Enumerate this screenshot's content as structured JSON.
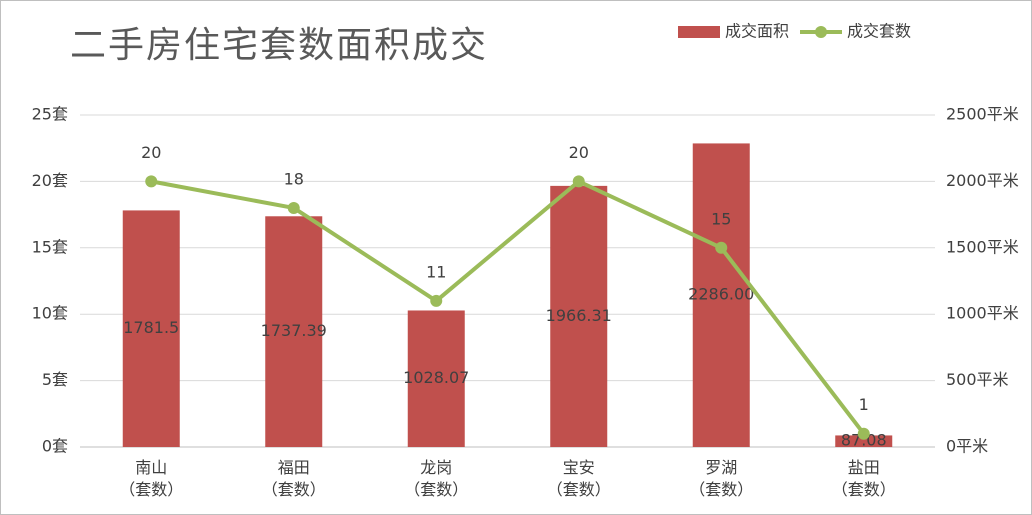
{
  "chart_data": {
    "type": "combo",
    "title": "二手房住宅套数面积成交",
    "categories": [
      "南山\n（套数）",
      "福田\n（套数）",
      "龙岗\n（套数）",
      "宝安\n（套数）",
      "罗湖\n（套数）",
      "盐田\n（套数）"
    ],
    "series": [
      {
        "name": "成交面积",
        "type": "bar",
        "color": "#c0504d",
        "axis": "y2",
        "values": [
          1781.5,
          1737.39,
          1028.07,
          1966.31,
          2286.0,
          87.08
        ],
        "value_labels": [
          "1781.5",
          "1737.39",
          "1028.07",
          "1966.31",
          "2286.00",
          "87.08"
        ]
      },
      {
        "name": "成交套数",
        "type": "line",
        "color": "#9bbb59",
        "values": [
          20,
          18,
          11,
          20,
          15,
          1
        ]
      }
    ],
    "ylim": [
      0,
      25
    ],
    "yticks": [
      {
        "value": 0,
        "label": "0套"
      },
      {
        "value": 5,
        "label": "5套"
      },
      {
        "value": 10,
        "label": "10套"
      },
      {
        "value": 15,
        "label": "15套"
      },
      {
        "value": 20,
        "label": "20套"
      },
      {
        "value": 25,
        "label": "25套"
      }
    ],
    "y2lim": [
      0,
      2500
    ],
    "y2ticks": [
      {
        "value": 0,
        "label": "0平米"
      },
      {
        "value": 500,
        "label": "500平米"
      },
      {
        "value": 1000,
        "label": "1000平米"
      },
      {
        "value": 1500,
        "label": "1500平米"
      },
      {
        "value": 2000,
        "label": "2000平米"
      },
      {
        "value": 2500,
        "label": "2500平米"
      }
    ],
    "grid": true,
    "legend": "top-right"
  }
}
